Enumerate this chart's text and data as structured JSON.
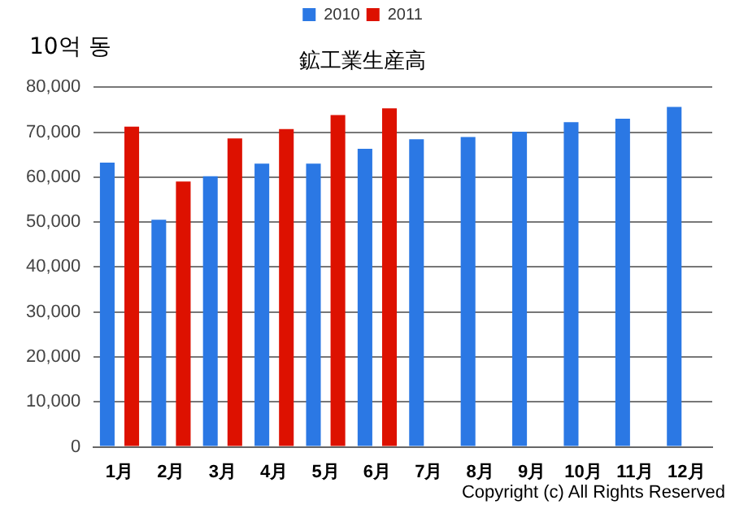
{
  "chart_data": {
    "type": "bar",
    "title": "鉱工業生産高",
    "ylabel": "10억 동",
    "categories": [
      "1月",
      "2月",
      "3月",
      "4月",
      "5月",
      "6月",
      "7月",
      "8月",
      "9月",
      "10月",
      "11月",
      "12月"
    ],
    "series": [
      {
        "name": "2010",
        "color": "#2b78e4",
        "values": [
          63200,
          50500,
          60200,
          63000,
          63000,
          66300,
          68400,
          68900,
          70100,
          72200,
          73000,
          75600
        ]
      },
      {
        "name": "2011",
        "color": "#dd1100",
        "values": [
          71200,
          59000,
          68600,
          70700,
          73800,
          75300,
          null,
          null,
          null,
          null,
          null,
          null
        ]
      }
    ],
    "ylim": [
      0,
      80000
    ],
    "yticks": [
      0,
      {
        "value": 10000,
        "label": "10,000"
      },
      {
        "value": 20000,
        "label": "20,000"
      },
      {
        "value": 30000,
        "label": "30,000"
      },
      {
        "value": 40000,
        "label": "40,000"
      },
      {
        "value": 50000,
        "label": "50,000"
      },
      {
        "value": 60000,
        "label": "60,000"
      },
      {
        "value": 70000,
        "label": "70,000"
      },
      {
        "value": 80000,
        "label": "80,000"
      }
    ],
    "grid": "y",
    "legend": "top",
    "annotations": [
      "Copyright (c) All Rights Reserved"
    ]
  }
}
